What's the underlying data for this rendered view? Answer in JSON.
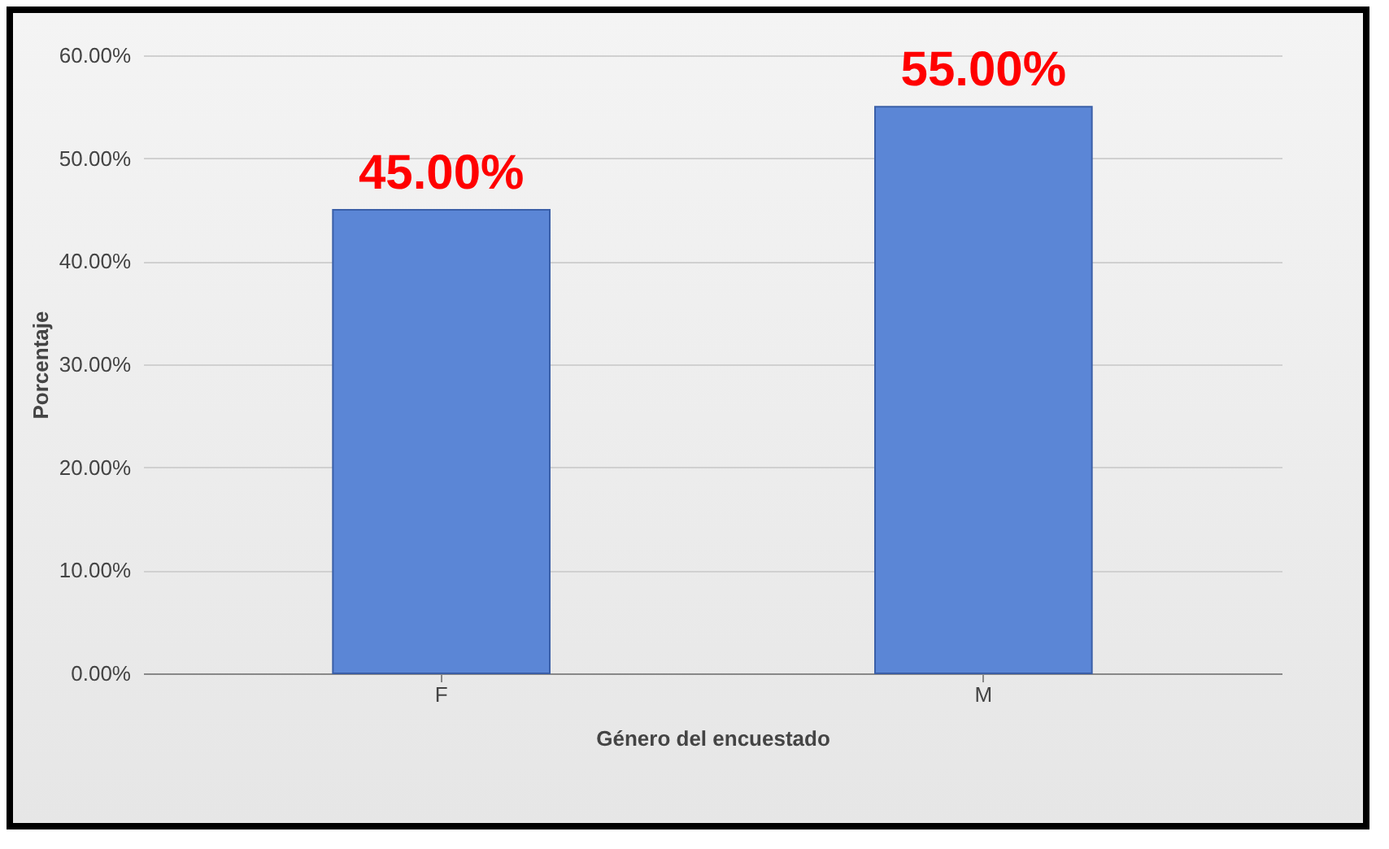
{
  "chart_data": {
    "type": "bar",
    "xlabel": "Género del encuestado",
    "ylabel": "Porcentaje",
    "categories": [
      "F",
      "M"
    ],
    "values": [
      45,
      55
    ],
    "color": "#5b86d6",
    "value_labels": [
      "45.00%",
      "55.00%"
    ],
    "ylim": [
      0,
      60
    ],
    "yticks": [
      {
        "value": 0,
        "label": "0.00%"
      },
      {
        "value": 10,
        "label": "10.00%"
      },
      {
        "value": 20,
        "label": "20.00%"
      },
      {
        "value": 30,
        "label": "30.00%"
      },
      {
        "value": 40,
        "label": "40.00%"
      },
      {
        "value": 50,
        "label": "50.00%"
      },
      {
        "value": 60,
        "label": "60.00%"
      }
    ],
    "grid": "y"
  }
}
